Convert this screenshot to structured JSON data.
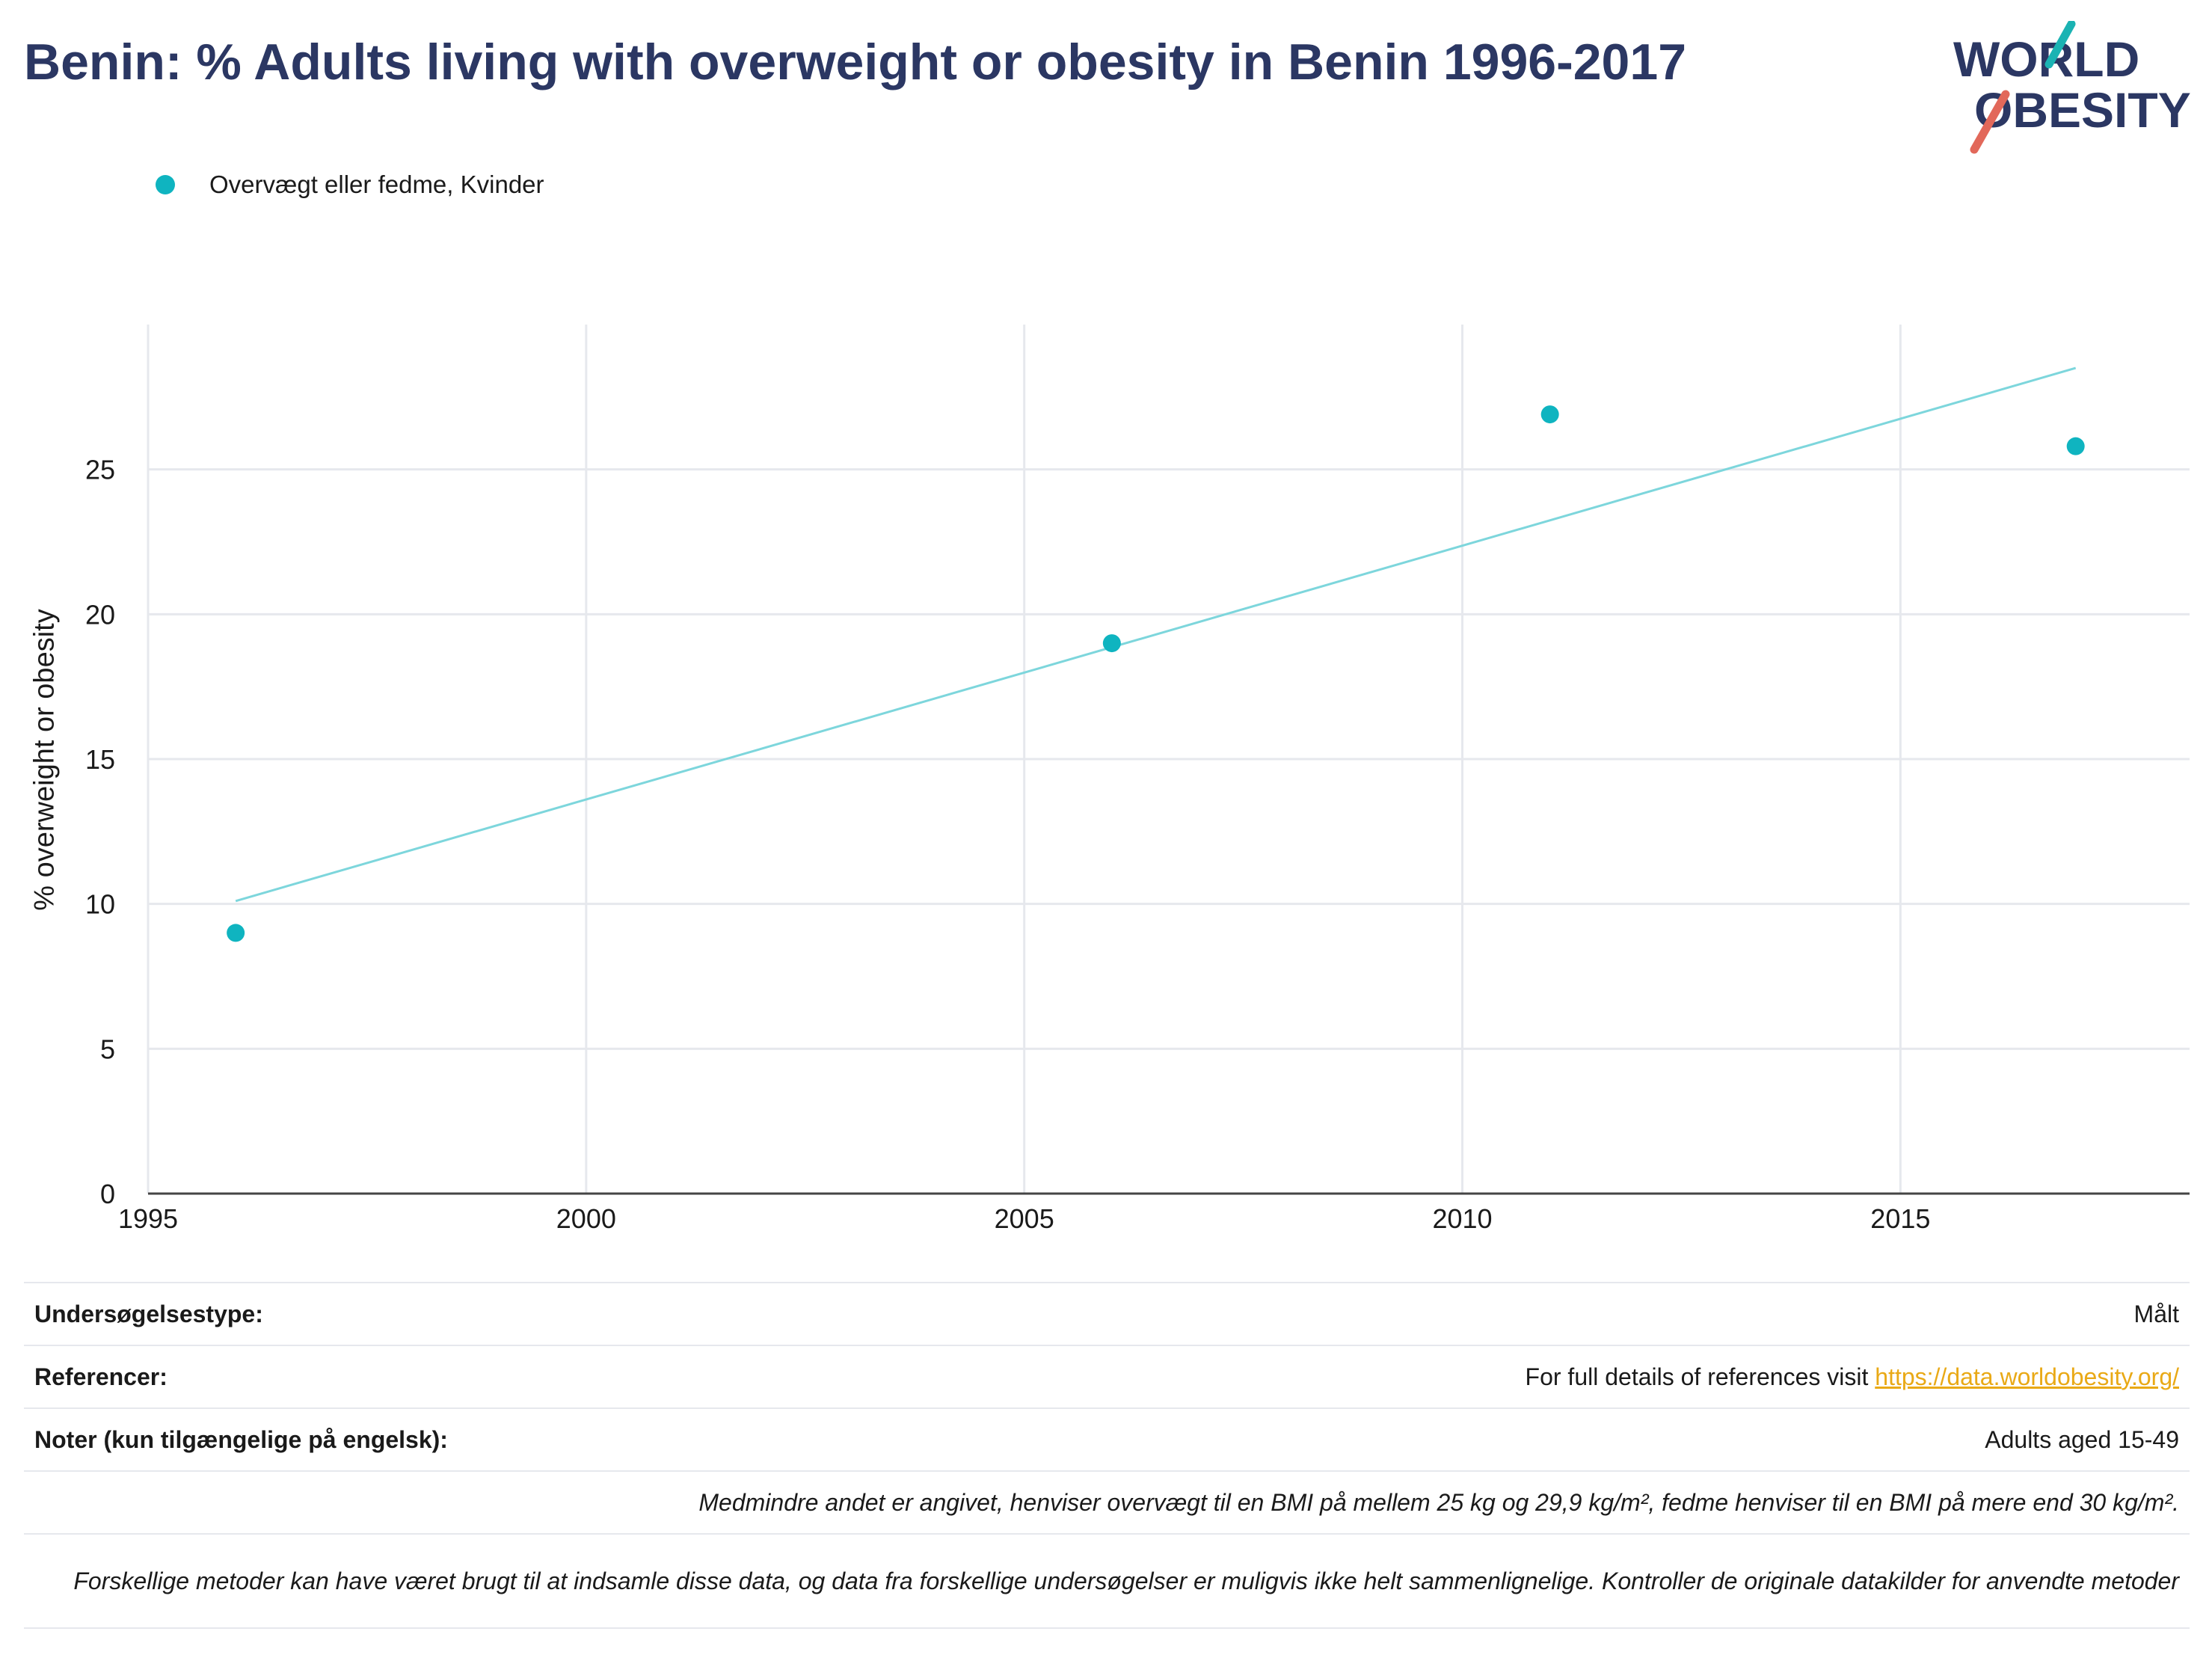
{
  "title": "Benin: % Adults living with overweight or obesity in Benin 1996-2017",
  "logo": {
    "line1": "WORLD",
    "line2": "OBESITY",
    "accent_teal": "#1bb3b3",
    "accent_red": "#e2685a"
  },
  "legend": {
    "label": "Overvægt eller fedme, Kvinder",
    "color": "#0fb4c0"
  },
  "colors": {
    "points": "#0fb4c0",
    "trendline": "#7dd6dc",
    "grid": "#e6e8ed",
    "title": "#2b3763",
    "link": "#e9a916"
  },
  "chart_data": {
    "type": "scatter",
    "title": "Benin: % Adults living with overweight or obesity in Benin 1996-2017",
    "xlabel": "",
    "ylabel": "% overweight or obesity",
    "xlim": [
      1995,
      2018.3
    ],
    "ylim": [
      0,
      30
    ],
    "x_ticks": [
      1995,
      2000,
      2005,
      2010,
      2015
    ],
    "y_ticks": [
      0,
      5,
      10,
      15,
      20,
      25
    ],
    "grid": true,
    "legend_position": "top-left",
    "series": [
      {
        "name": "Overvægt eller fedme, Kvinder",
        "points": [
          {
            "x": 1996,
            "y": 9.0
          },
          {
            "x": 2006,
            "y": 19.0
          },
          {
            "x": 2011,
            "y": 26.9
          },
          {
            "x": 2017,
            "y": 25.8
          }
        ],
        "trendline": {
          "x": [
            1996,
            2017
          ],
          "y": [
            10.1,
            28.5
          ]
        }
      }
    ]
  },
  "info": {
    "survey_type_label": "Undersøgelsestype:",
    "survey_type_value": "Målt",
    "references_label": "Referencer:",
    "references_text": "For full details of references visit ",
    "references_link": "https://data.worldobesity.org/",
    "notes_label": "Noter (kun tilgængelige på engelsk):",
    "notes_value": "Adults aged 15-49",
    "definition_note": "Medmindre andet er angivet, henviser overvægt til en BMI på mellem 25 kg og 29,9 kg/m², fedme henviser til en BMI på mere end 30 kg/m².",
    "methods_note": "Forskellige metoder kan have været brugt til at indsamle disse data, og data fra forskellige undersøgelser er muligvis ikke helt sammenlignelige. Kontroller de originale datakilder for anvendte metoder"
  }
}
